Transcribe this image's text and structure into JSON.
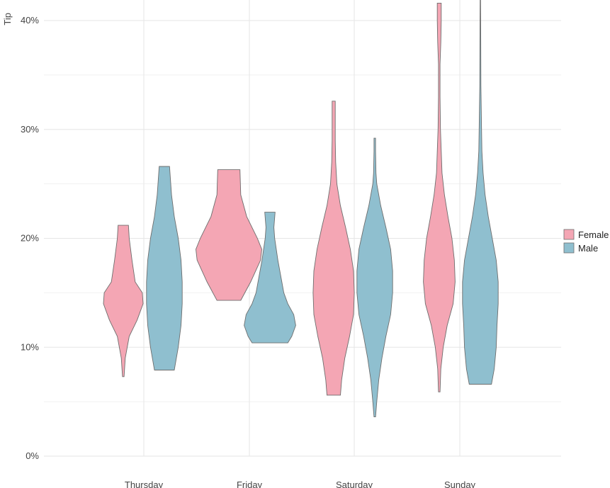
{
  "chart_data": {
    "type": "violin",
    "title": "",
    "xlabel": "",
    "ylabel": "Tip",
    "ylim": [
      0,
      42
    ],
    "y_tick_format": "percent",
    "y_ticks": [
      0,
      10,
      20,
      30,
      40
    ],
    "y_tick_labels": [
      "0%",
      "10%",
      "20%",
      "30%",
      "40%"
    ],
    "grid": true,
    "legend_position": "right",
    "categories": [
      "Thursday",
      "Friday",
      "Saturday",
      "Sunday"
    ],
    "series": [
      {
        "name": "Female",
        "color": "#f4a6b4",
        "violins": [
          {
            "category": "Thursday",
            "y": [
              7.3,
              9,
              11,
              12.5,
              14,
              15,
              16,
              18,
              20,
              21.2
            ],
            "w": [
              0.02,
              0.05,
              0.15,
              0.35,
              0.5,
              0.48,
              0.3,
              0.22,
              0.15,
              0.13
            ]
          },
          {
            "category": "Friday",
            "y": [
              14.3,
              16,
              18,
              19,
              20,
              22,
              24,
              26.3
            ],
            "w": [
              0.3,
              0.55,
              0.8,
              0.83,
              0.72,
              0.45,
              0.3,
              0.28
            ]
          },
          {
            "category": "Saturday",
            "y": [
              5.6,
              7,
              9,
              11,
              13,
              15,
              17,
              19,
              21,
              23,
              25,
              27,
              29,
              32.6
            ],
            "w": [
              0.17,
              0.2,
              0.28,
              0.4,
              0.5,
              0.52,
              0.5,
              0.42,
              0.3,
              0.17,
              0.08,
              0.05,
              0.04,
              0.04
            ]
          },
          {
            "category": "Sunday",
            "y": [
              5.9,
              8,
              10,
              12,
              14,
              16,
              18,
              20,
              22,
              24,
              26,
              28,
              30,
              33,
              36,
              38,
              40,
              41.6
            ],
            "w": [
              0.02,
              0.04,
              0.1,
              0.2,
              0.35,
              0.4,
              0.38,
              0.32,
              0.22,
              0.13,
              0.07,
              0.05,
              0.03,
              0.02,
              0.02,
              0.04,
              0.05,
              0.05
            ]
          }
        ]
      },
      {
        "name": "Male",
        "color": "#8fbfcf",
        "violins": [
          {
            "category": "Thursday",
            "y": [
              7.9,
              10,
              12,
              14,
              16,
              18,
              20,
              22,
              24,
              26.6
            ],
            "w": [
              0.25,
              0.35,
              0.42,
              0.45,
              0.45,
              0.42,
              0.35,
              0.25,
              0.18,
              0.13
            ]
          },
          {
            "category": "Friday",
            "y": [
              10.4,
              11,
              12,
              13,
              14,
              15,
              16,
              18,
              20,
              21,
              22.4
            ],
            "w": [
              0.45,
              0.55,
              0.65,
              0.6,
              0.45,
              0.35,
              0.3,
              0.2,
              0.12,
              0.1,
              0.13
            ]
          },
          {
            "category": "Saturday",
            "y": [
              3.6,
              5,
              7,
              9,
              11,
              13,
              15,
              17,
              19,
              21,
              23,
              25,
              26,
              28,
              29.2
            ],
            "w": [
              0.02,
              0.05,
              0.1,
              0.18,
              0.28,
              0.4,
              0.45,
              0.45,
              0.4,
              0.28,
              0.15,
              0.05,
              0.03,
              0.02,
              0.02
            ]
          },
          {
            "category": "Sunday",
            "y": [
              6.6,
              8,
              10,
              12,
              14,
              16,
              18,
              20,
              22,
              24,
              26,
              28,
              30,
              34,
              38,
              42
            ],
            "w": [
              0.28,
              0.35,
              0.4,
              0.42,
              0.45,
              0.45,
              0.4,
              0.3,
              0.2,
              0.12,
              0.07,
              0.04,
              0.03,
              0.015,
              0.01,
              0.005
            ]
          }
        ]
      }
    ]
  }
}
